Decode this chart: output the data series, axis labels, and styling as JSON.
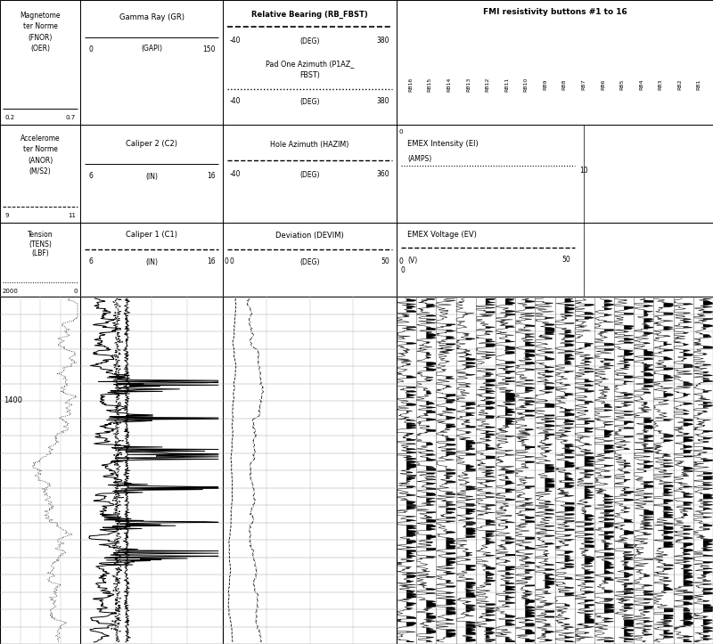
{
  "bg_color": "#ffffff",
  "border_color": "#000000",
  "track1_r1": [
    "Magnetome",
    "ter Norme",
    "(FNOR)",
    "(OER)"
  ],
  "track1_r1_range_l": "0.2",
  "track1_r1_range_r": "0.7",
  "track1_r2": [
    "Accelerome",
    "ter Norme",
    "(ANOR)",
    "(M/S2)"
  ],
  "track1_r2_range_l": "9",
  "track1_r2_range_r": "11",
  "track1_r3": [
    "Tension",
    "(TENS)",
    "(LBF)"
  ],
  "track1_r3_range_l": "2000",
  "track1_r3_range_r": "0",
  "track2_r1_name": "Gamma Ray (GR)",
  "track2_r1_unit": "(GAPI)",
  "track2_r1_min": "0",
  "track2_r1_max": "150",
  "track2_r2_name": "Caliper 2 (C2)",
  "track2_r2_unit": "(IN)",
  "track2_r2_min": "6",
  "track2_r2_max": "16",
  "track2_r3_name": "Caliper 1 (C1)",
  "track2_r3_unit": "(IN)",
  "track2_r3_min": "6",
  "track2_r3_max": "16",
  "track3_r1_name": "Relative Bearing (RB_FBST)",
  "track3_r1_unit": "(DEG)",
  "track3_r1_min": "-40",
  "track3_r1_max": "380",
  "track3_r2_name1": "Pad One Azimuth (P1AZ_",
  "track3_r2_name2": "FBST)",
  "track3_r2_unit": "(DEG)",
  "track3_r2_min": "-40",
  "track3_r2_max": "380",
  "track3_r3_name": "Hole Azimuth (HAZIM)",
  "track3_r3_unit": "(DEG)",
  "track3_r3_min": "-40",
  "track3_r3_max": "360",
  "track3_r3_right": "0",
  "track3_r4_name": "Deviation (DEVIM)",
  "track3_r4_unit": "(DEG)",
  "track3_r4_min": "0",
  "track3_r4_max": "50",
  "track4_title": "FMI resistivity buttons #1 to 16",
  "track4_buttons": [
    "RB16",
    "RB15",
    "RB14",
    "RB13",
    "RB12",
    "RB11",
    "RB10",
    "RB9",
    "RB8",
    "RB7",
    "RB6",
    "RB5",
    "RB4",
    "RB3",
    "RB2",
    "RB1"
  ],
  "track4_r2_name": "EMEX Intensity (EI)",
  "track4_r2_unit": "(AMPS)",
  "track4_r2_max": "10",
  "track4_r3_name": "EMEX Voltage (EV)",
  "track4_r3_unit": "(V)",
  "track4_r3_min": "0",
  "track4_r3_max": "50",
  "depth_1400": "1400",
  "figure_width": 8.0,
  "figure_height": 7.23,
  "dpi": 100
}
